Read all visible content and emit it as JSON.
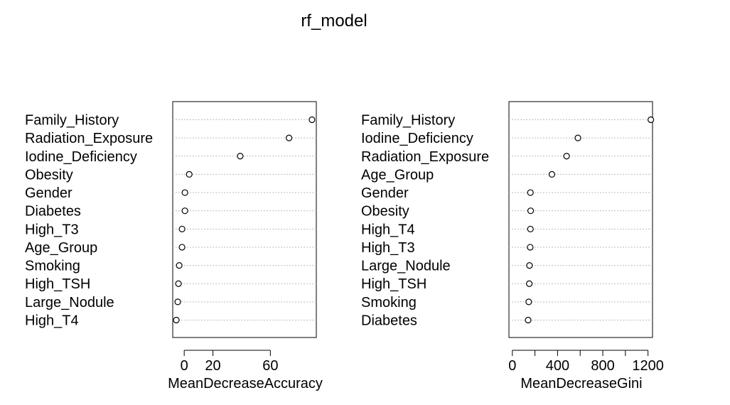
{
  "title": "rf_model",
  "chart_data": [
    {
      "type": "scatter",
      "xlabel": "MeanDecreaseAccuracy",
      "xlim": [
        -8,
        92
      ],
      "xticks": [
        0,
        20,
        60
      ],
      "grid": true,
      "categories": [
        "Family_History",
        "Radiation_Exposure",
        "Iodine_Deficiency",
        "Obesity",
        "Gender",
        "Diabetes",
        "High_T3",
        "Age_Group",
        "Smoking",
        "High_TSH",
        "Large_Nodule",
        "High_T4"
      ],
      "values": [
        89,
        73,
        39,
        3.5,
        0.5,
        0.5,
        -1.5,
        -1.5,
        -3.5,
        -4,
        -4.5,
        -5.5
      ]
    },
    {
      "type": "scatter",
      "xlabel": "MeanDecreaseGini",
      "xlim": [
        -30,
        1240
      ],
      "xticks": [
        0,
        400,
        800,
        1200
      ],
      "minor_xticks": [
        200,
        600,
        1000
      ],
      "grid": true,
      "categories": [
        "Family_History",
        "Iodine_Deficiency",
        "Radiation_Exposure",
        "Age_Group",
        "Gender",
        "Obesity",
        "High_T4",
        "High_T3",
        "Large_Nodule",
        "High_TSH",
        "Smoking",
        "Diabetes"
      ],
      "values": [
        1225,
        580,
        480,
        350,
        160,
        162,
        160,
        158,
        152,
        150,
        145,
        140
      ]
    }
  ]
}
